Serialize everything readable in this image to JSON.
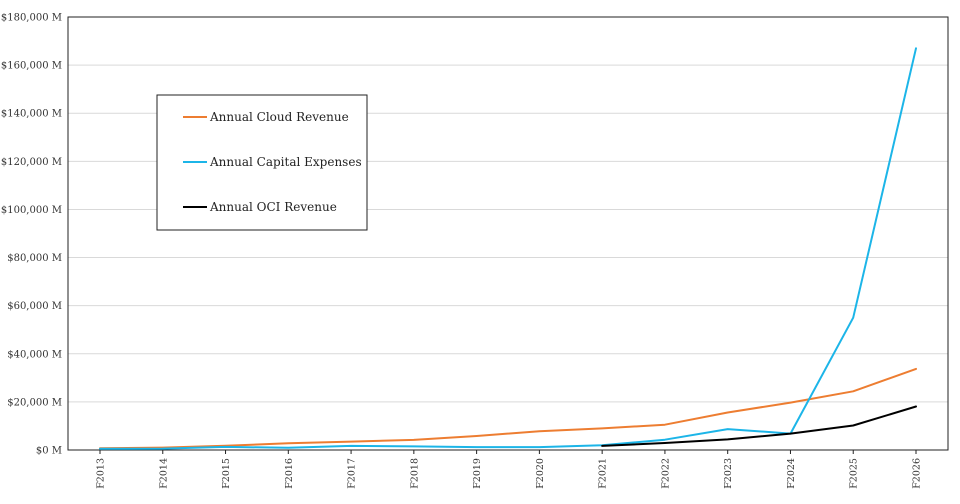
{
  "chart_data": {
    "type": "line",
    "categories": [
      "F2013",
      "F2014",
      "F2015",
      "F2016",
      "F2017",
      "F2018",
      "F2019",
      "F2020",
      "F2021",
      "F2022",
      "F2023",
      "F2024",
      "F2025",
      "F2026"
    ],
    "series": [
      {
        "name": "Annual Cloud Revenue",
        "color": "#ED7D31",
        "values": [
          700,
          1000,
          1800,
          2800,
          3500,
          4200,
          5800,
          7800,
          9000,
          10500,
          15600,
          19700,
          24400,
          33700
        ]
      },
      {
        "name": "Annual Capital Expenses",
        "color": "#1CB5E8",
        "values": [
          500,
          600,
          1300,
          900,
          1700,
          1500,
          1200,
          1200,
          2000,
          4300,
          8700,
          6800,
          55000,
          167000
        ]
      },
      {
        "name": "Annual OCI Revenue",
        "color": "#000000",
        "values": [
          null,
          null,
          null,
          null,
          null,
          null,
          null,
          null,
          1700,
          2900,
          4400,
          6800,
          10200,
          18100
        ]
      }
    ],
    "ylim": [
      0,
      180000
    ],
    "yticks": [
      "$0 M",
      "$20,000 M",
      "$40,000 M",
      "$60,000 M",
      "$80,000 M",
      "$100,000 M",
      "$120,000 M",
      "$140,000 M",
      "$160,000 M",
      "$180,000 M"
    ],
    "grid": true,
    "legend_position": "upper-left"
  }
}
